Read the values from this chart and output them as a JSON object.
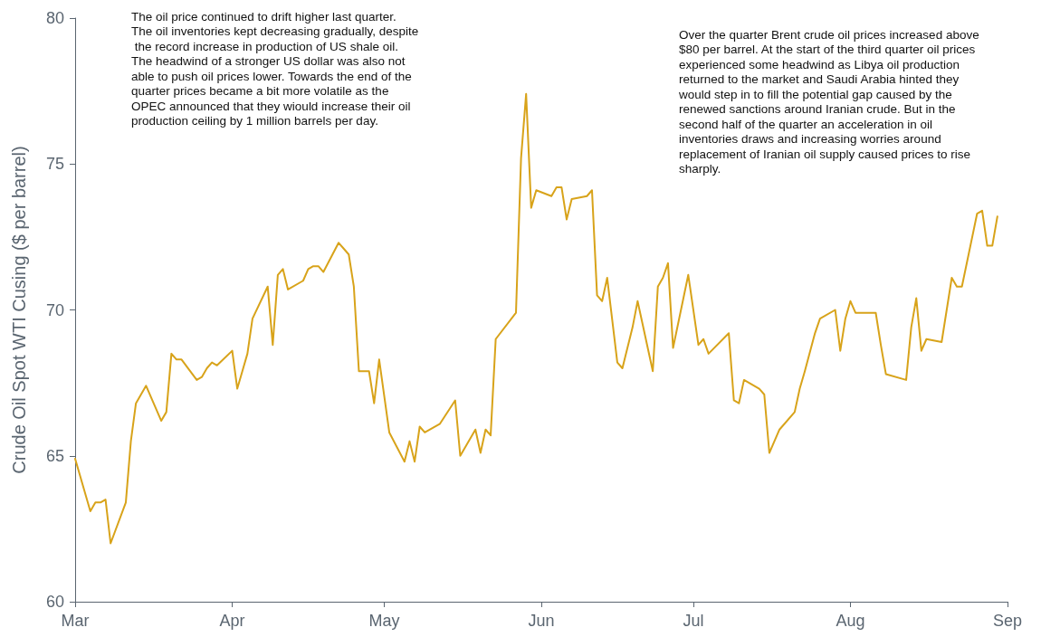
{
  "chart_data": {
    "type": "line",
    "ylabel": "Crude Oil Spot WTI Cusing ($ per barrel)",
    "annotations": [
      "The oil price continued to drift higher last quarter. The oil inventories kept decreasing gradually, despite the record increase in production of US shale oil. The headwind of a stronger US dollar was also not able to push oil prices lower. Towards the end of the quarter prices became a bit more volatile as the OPEC announced that they wiould increase their oil production ceiling by 1 million barrels per day.",
      "Over the quarter Brent crude oil prices increased above $80 per barrel. At the start of the third quarter oil prices experienced some headwind as Libya oil production returned to the market and Saudi Arabia hinted they would step in to fill the potential gap caused by the renewed sanctions around Iranian crude. But in the second half of the quarter an acceleration in oil inventories draws and increasing worries around replacement of Iranian oil supply caused prices to rise sharply."
    ],
    "x": [
      "--03-01",
      "--03-04",
      "--03-05",
      "--03-06",
      "--03-07",
      "--03-08",
      "--03-11",
      "--03-12",
      "--03-13",
      "--03-15",
      "--03-18",
      "--03-19",
      "--03-20",
      "--03-21",
      "--03-22",
      "--03-25",
      "--03-26",
      "--03-27",
      "--03-28",
      "--03-29",
      "--04-01",
      "--04-02",
      "--04-03",
      "--04-04",
      "--04-05",
      "--04-08",
      "--04-09",
      "--04-10",
      "--04-11",
      "--04-12",
      "--04-15",
      "--04-16",
      "--04-17",
      "--04-18",
      "--04-19",
      "--04-22",
      "--04-23",
      "--04-24",
      "--04-25",
      "--04-26",
      "--04-28",
      "--04-29",
      "--04-30",
      "--05-02",
      "--05-05",
      "--05-06",
      "--05-07",
      "--05-08",
      "--05-09",
      "--05-12",
      "--05-15",
      "--05-16",
      "--05-19",
      "--05-20",
      "--05-21",
      "--05-22",
      "--05-23",
      "--05-27",
      "--05-28",
      "--05-29",
      "--05-30",
      "--05-31",
      "--06-03",
      "--06-04",
      "--06-05",
      "--06-06",
      "--06-07",
      "--06-10",
      "--06-11",
      "--06-12",
      "--06-13",
      "--06-14",
      "--06-16",
      "--06-17",
      "--06-19",
      "--06-20",
      "--06-23",
      "--06-24",
      "--06-25",
      "--06-26",
      "--06-27",
      "--06-30",
      "--07-02",
      "--07-03",
      "--07-04",
      "--07-08",
      "--07-09",
      "--07-10",
      "--07-11",
      "--07-14",
      "--07-15",
      "--07-16",
      "--07-18",
      "--07-21",
      "--07-22",
      "--07-23",
      "--07-25",
      "--07-26",
      "--07-29",
      "--07-30",
      "--07-31",
      "--08-01",
      "--08-02",
      "--08-06",
      "--08-07",
      "--08-08",
      "--08-12",
      "--08-13",
      "--08-14",
      "--08-15",
      "--08-16",
      "--08-19",
      "--08-21",
      "--08-22",
      "--08-23",
      "--08-26",
      "--08-27",
      "--08-28",
      "--08-29",
      "--08-30"
    ],
    "series": [
      {
        "color": "#d8a31a",
        "values": [
          64.9,
          63.1,
          63.4,
          63.4,
          63.5,
          62.0,
          63.4,
          65.5,
          66.8,
          67.4,
          66.2,
          66.5,
          68.5,
          68.3,
          68.3,
          67.6,
          67.7,
          68.0,
          68.2,
          68.1,
          68.6,
          67.3,
          67.9,
          68.5,
          69.7,
          70.8,
          68.8,
          71.2,
          71.4,
          70.7,
          71.0,
          71.4,
          71.5,
          71.5,
          71.3,
          72.3,
          72.1,
          71.9,
          70.8,
          67.9,
          67.9,
          66.8,
          68.3,
          65.8,
          64.8,
          65.5,
          64.8,
          66.0,
          65.8,
          66.1,
          66.9,
          65.0,
          65.9,
          65.1,
          65.9,
          65.7,
          69.0,
          69.9,
          75.2,
          77.4,
          73.5,
          74.1,
          73.9,
          74.2,
          74.2,
          73.1,
          73.8,
          73.9,
          74.1,
          70.5,
          70.3,
          71.1,
          68.2,
          68.0,
          69.4,
          70.3,
          67.9,
          70.8,
          71.1,
          71.6,
          68.7,
          71.2,
          68.8,
          69.0,
          68.5,
          69.2,
          66.9,
          66.8,
          67.6,
          67.3,
          67.1,
          65.1,
          65.9,
          66.5,
          67.3,
          67.9,
          69.2,
          69.7,
          70.0,
          68.6,
          69.7,
          70.3,
          69.9,
          69.9,
          68.8,
          67.8,
          67.6,
          69.4,
          70.4,
          68.6,
          69.0,
          68.9,
          71.1,
          70.8,
          70.8,
          73.3,
          73.4,
          72.2,
          72.2,
          73.2
        ]
      }
    ],
    "xlim": [
      "--03-01",
      "--09-01"
    ],
    "xticks": [
      {
        "value": "--03-01",
        "label": "Mar"
      },
      {
        "value": "--04-01",
        "label": "Apr"
      },
      {
        "value": "--05-01",
        "label": "May"
      },
      {
        "value": "--06-01",
        "label": "Jun"
      },
      {
        "value": "--07-01",
        "label": "Jul"
      },
      {
        "value": "--08-01",
        "label": "Aug"
      },
      {
        "value": "--09-01",
        "label": "Sep"
      }
    ],
    "ylim": [
      60,
      80
    ],
    "yticks": [
      60,
      65,
      70,
      75,
      80
    ],
    "line_style": "solid"
  }
}
